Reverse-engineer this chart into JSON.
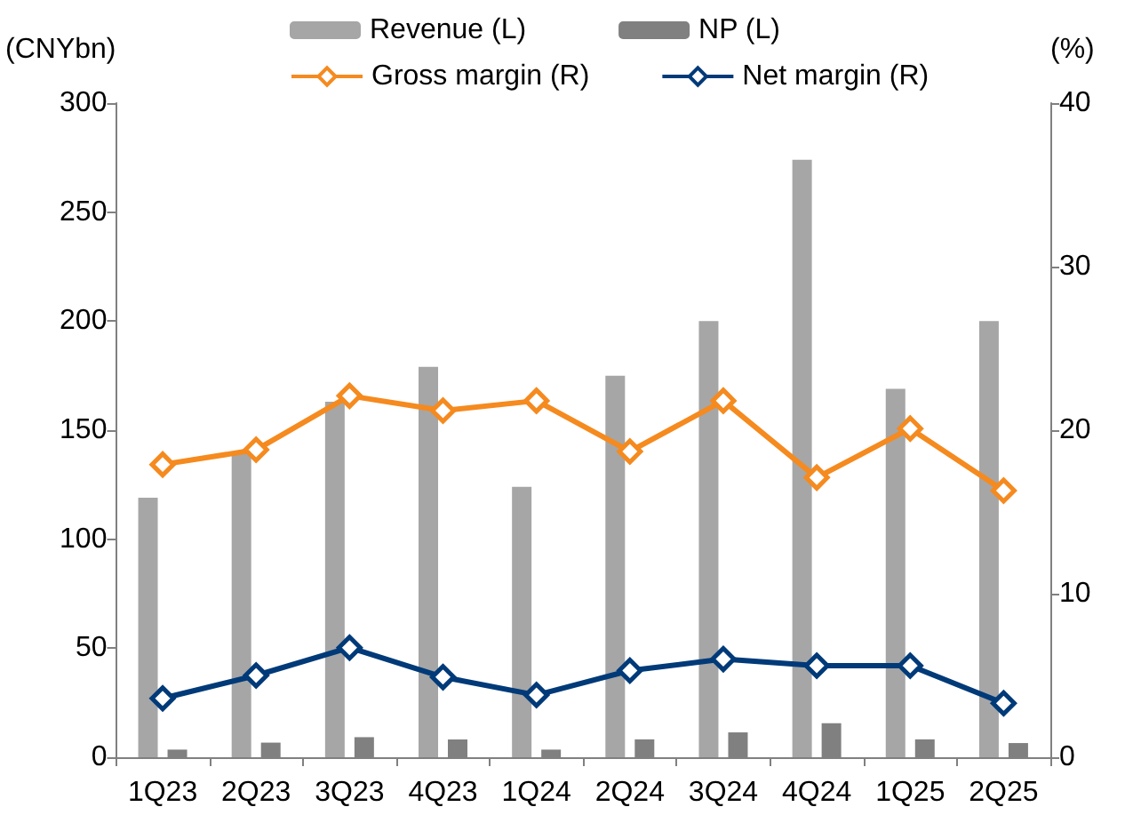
{
  "chart_data": {
    "type": "bar",
    "ylabel": "(CNYbn)",
    "y2label": "(%)",
    "categories": [
      "1Q23",
      "2Q23",
      "3Q23",
      "4Q23",
      "1Q24",
      "2Q24",
      "3Q24",
      "4Q24",
      "1Q25",
      "2Q25"
    ],
    "series": [
      {
        "name": "Revenue (L)",
        "color": "#a6a6a6",
        "values": [
          119,
          140,
          163,
          179,
          124,
          175,
          200,
          274,
          169,
          200
        ]
      },
      {
        "name": "NP (L)",
        "color": "#808080",
        "values": [
          3.5,
          6.7,
          9.2,
          8.2,
          3.5,
          8.2,
          11.4,
          15.6,
          8.2,
          6.5
        ]
      },
      {
        "name": "Gross margin (R)",
        "type": "line",
        "axis": "y2",
        "color": "#f58a1f",
        "values": [
          17.9,
          18.8,
          22.1,
          21.2,
          21.8,
          18.7,
          21.8,
          17.1,
          20.1,
          16.3
        ]
      },
      {
        "name": "Net margin (R)",
        "type": "line",
        "axis": "y2",
        "color": "#003a78",
        "values": [
          3.6,
          5.0,
          6.7,
          4.9,
          3.8,
          5.3,
          6.0,
          5.6,
          5.6,
          3.3
        ]
      }
    ],
    "ylim": [
      0,
      300
    ],
    "yticks": [
      0,
      50,
      100,
      150,
      200,
      250,
      300
    ],
    "y2lim": [
      0,
      40
    ],
    "y2ticks": [
      0,
      10,
      20,
      30,
      40
    ],
    "grid": false,
    "legend": "top",
    "marker": "diamond",
    "line_style": "solid"
  }
}
